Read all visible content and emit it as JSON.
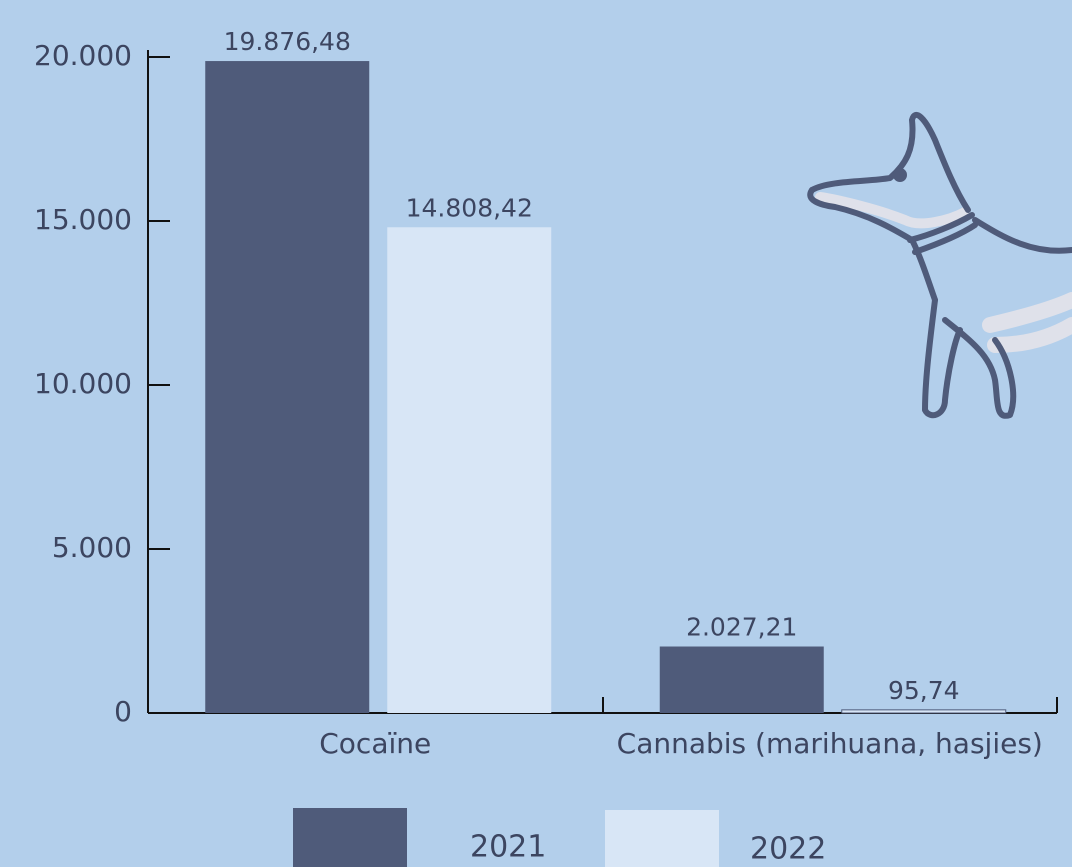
{
  "chart_data": {
    "type": "bar",
    "categories": [
      "Cocaïne",
      "Cannabis (marihuana, hasjies)"
    ],
    "series": [
      {
        "name": "2021",
        "color": "#4f5b7a",
        "values": [
          19876.48,
          2027.21
        ],
        "value_labels": [
          "19.876,48",
          "2.027,21"
        ]
      },
      {
        "name": "2022",
        "color": "#d8e6f6",
        "values": [
          14808.42,
          95.74
        ],
        "value_labels": [
          "14.808,42",
          "95,74"
        ]
      }
    ],
    "ylim": [
      0,
      20000
    ],
    "yticks": [
      0,
      {
        "value": 5000,
        "label": "5.000"
      },
      {
        "value": 10000,
        "label": "10.000"
      },
      {
        "value": 15000,
        "label": "15.000"
      },
      {
        "value": 20000,
        "label": "20.000"
      }
    ]
  }
}
